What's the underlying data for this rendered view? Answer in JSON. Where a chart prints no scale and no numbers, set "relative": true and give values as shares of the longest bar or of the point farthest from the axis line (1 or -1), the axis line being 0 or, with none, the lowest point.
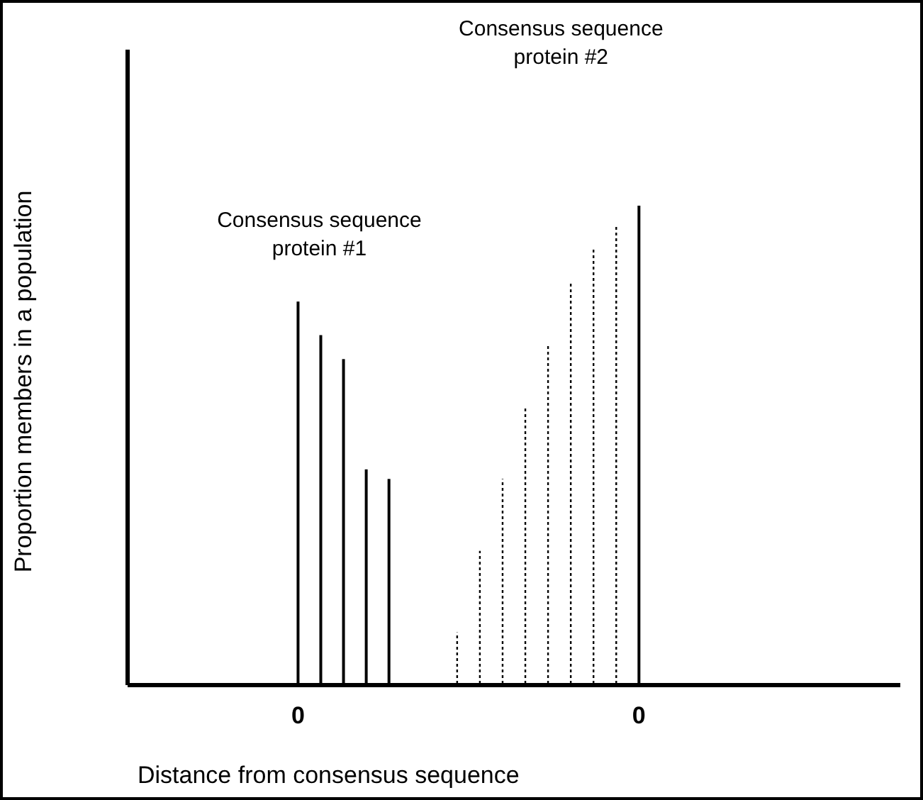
{
  "chart_data": {
    "type": "bar",
    "relative": true,
    "xlabel": "Distance from consensus sequence",
    "ylabel": "Proportion members in a population",
    "categories": [
      null,
      null,
      null,
      null,
      null,
      null,
      null,
      "0",
      null,
      null,
      null,
      null,
      null,
      null,
      null,
      null,
      null,
      null,
      null,
      null,
      null,
      null,
      "0",
      null,
      null,
      null,
      null,
      null,
      null,
      null,
      null,
      null,
      null,
      null
    ],
    "series": [
      {
        "color": "#000000",
        "line_style": "solid",
        "values": [
          null,
          null,
          null,
          null,
          null,
          null,
          null,
          0.8,
          0.73,
          0.68,
          0.45,
          0.43,
          null,
          null,
          null,
          null,
          null,
          null,
          null,
          null,
          null,
          null,
          1,
          null,
          null,
          null,
          null,
          null,
          null,
          null,
          null,
          null,
          null,
          null
        ]
      },
      {
        "color": "#000000",
        "line_style": "dotted",
        "values": [
          null,
          null,
          null,
          null,
          null,
          null,
          null,
          null,
          null,
          null,
          null,
          null,
          null,
          null,
          0.11,
          0.28,
          0.43,
          0.58,
          0.71,
          0.84,
          0.91,
          0.96,
          null,
          null,
          null,
          null,
          null,
          null,
          null,
          null,
          null,
          null,
          null,
          null
        ]
      }
    ],
    "annotations": [
      "Consensus sequence protein #1",
      "Consensus sequence protein #2"
    ]
  }
}
